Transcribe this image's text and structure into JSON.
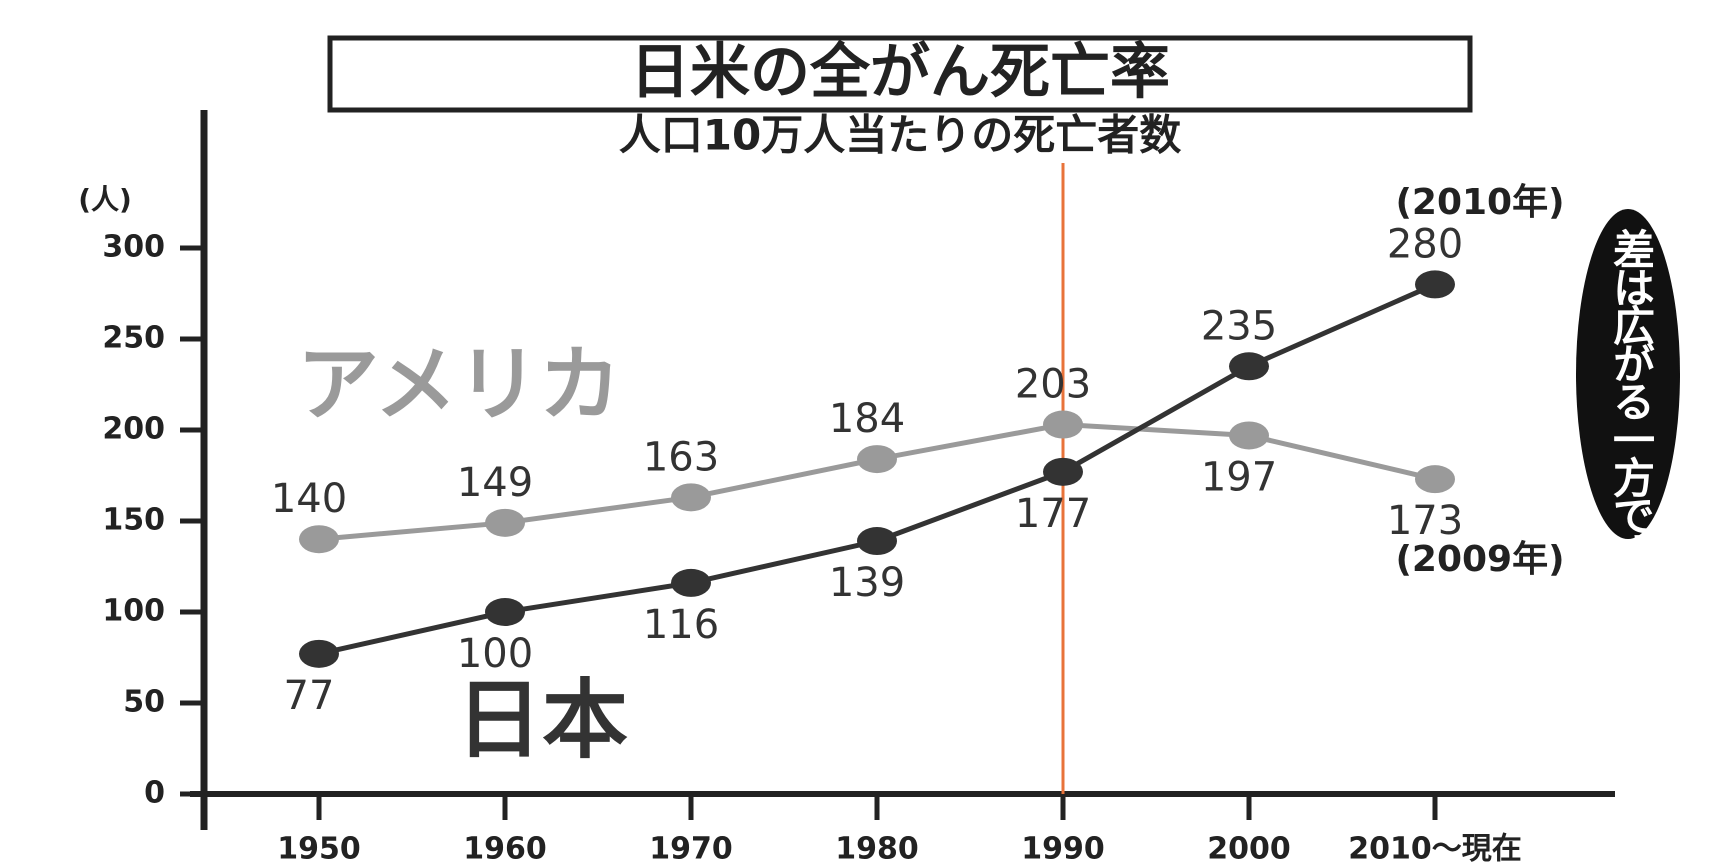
{
  "chart_data": {
    "type": "line",
    "title": "日米の全がん死亡率",
    "subtitle": "人口10万人当たりの死亡者数",
    "y_unit": "(人)",
    "categories": [
      "1950",
      "1960",
      "1970",
      "1980",
      "1990",
      "2000",
      "2010〜現在"
    ],
    "series": [
      {
        "name": "アメリカ",
        "color": "#9a9a9a",
        "values": [
          140,
          149,
          163,
          184,
          203,
          197,
          173
        ]
      },
      {
        "name": "日本",
        "color": "#333333",
        "values": [
          77,
          100,
          116,
          139,
          177,
          235,
          280
        ]
      }
    ],
    "annotations": [
      "(2010年)",
      "(2009年)",
      "差は広がる一方です"
    ],
    "ylim": [
      0,
      300
    ],
    "yticks": [
      0,
      50,
      100,
      150,
      200,
      250,
      300
    ]
  }
}
